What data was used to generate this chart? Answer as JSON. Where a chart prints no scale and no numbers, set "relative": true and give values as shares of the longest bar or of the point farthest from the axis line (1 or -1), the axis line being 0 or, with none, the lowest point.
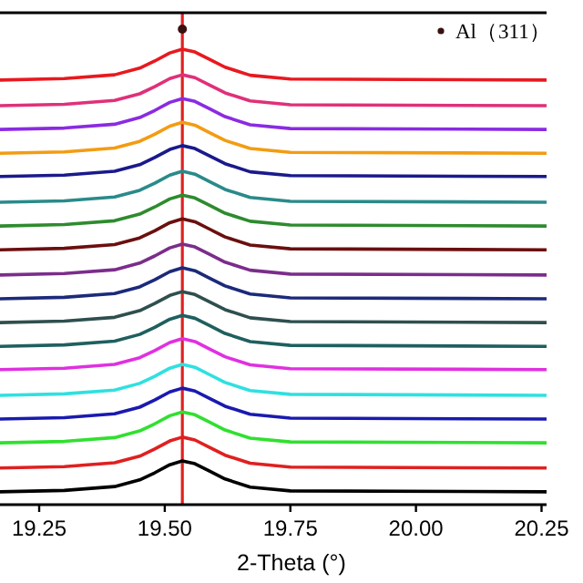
{
  "chart_data": {
    "type": "line",
    "xlabel": "2-Theta (°)",
    "relative": true,
    "xlim": [
      19.172,
      20.26
    ],
    "xticks": [
      {
        "value": 19.25,
        "label": "19.25"
      },
      {
        "value": 19.5,
        "label": "19.50"
      },
      {
        "value": 19.75,
        "label": "19.75"
      },
      {
        "value": 20.0,
        "label": "20.00"
      },
      {
        "value": 20.25,
        "label": "20.25"
      }
    ],
    "legend": "top right",
    "ref_lines": [
      {
        "axis": "x",
        "value": 19.535,
        "label": null,
        "color": "#e02020"
      }
    ],
    "x": [
      19.172,
      19.3,
      19.4,
      19.45,
      19.48,
      19.51,
      19.535,
      19.56,
      19.59,
      19.62,
      19.67,
      19.75,
      20.26
    ],
    "series": [
      {
        "color": "#e8191f",
        "values": [
          0.893,
          0.896,
          0.904,
          0.918,
          0.933,
          0.95,
          0.958,
          0.952,
          0.936,
          0.92,
          0.903,
          0.895,
          0.893
        ]
      },
      {
        "color": "#e0307a",
        "values": [
          0.839,
          0.842,
          0.85,
          0.864,
          0.879,
          0.896,
          0.904,
          0.898,
          0.882,
          0.866,
          0.849,
          0.841,
          0.839
        ]
      },
      {
        "color": "#8a2be2",
        "values": [
          0.789,
          0.792,
          0.8,
          0.814,
          0.829,
          0.846,
          0.854,
          0.848,
          0.832,
          0.816,
          0.799,
          0.791,
          0.789
        ]
      },
      {
        "color": "#f39c12",
        "values": [
          0.739,
          0.742,
          0.75,
          0.764,
          0.779,
          0.796,
          0.804,
          0.798,
          0.782,
          0.766,
          0.749,
          0.741,
          0.739
        ]
      },
      {
        "color": "#1a1a8c",
        "values": [
          0.69,
          0.693,
          0.701,
          0.715,
          0.73,
          0.747,
          0.755,
          0.749,
          0.733,
          0.717,
          0.7,
          0.692,
          0.69
        ]
      },
      {
        "color": "#2a8a8a",
        "values": [
          0.636,
          0.639,
          0.647,
          0.661,
          0.676,
          0.693,
          0.701,
          0.695,
          0.679,
          0.663,
          0.646,
          0.638,
          0.636
        ]
      },
      {
        "color": "#2e8b2e",
        "values": [
          0.586,
          0.589,
          0.597,
          0.611,
          0.626,
          0.643,
          0.651,
          0.645,
          0.629,
          0.613,
          0.596,
          0.588,
          0.586
        ]
      },
      {
        "color": "#6b0f0f",
        "values": [
          0.536,
          0.539,
          0.547,
          0.561,
          0.576,
          0.593,
          0.601,
          0.595,
          0.579,
          0.563,
          0.546,
          0.538,
          0.536
        ]
      },
      {
        "color": "#7b2d8b",
        "values": [
          0.483,
          0.486,
          0.494,
          0.508,
          0.523,
          0.54,
          0.548,
          0.542,
          0.526,
          0.51,
          0.493,
          0.485,
          0.483
        ]
      },
      {
        "color": "#1c2a7a",
        "values": [
          0.433,
          0.436,
          0.444,
          0.458,
          0.473,
          0.49,
          0.498,
          0.492,
          0.476,
          0.46,
          0.443,
          0.435,
          0.433
        ]
      },
      {
        "color": "#2f4f4f",
        "values": [
          0.383,
          0.386,
          0.394,
          0.408,
          0.423,
          0.44,
          0.448,
          0.442,
          0.426,
          0.41,
          0.393,
          0.385,
          0.383
        ]
      },
      {
        "color": "#1f5f5f",
        "values": [
          0.333,
          0.336,
          0.344,
          0.358,
          0.373,
          0.39,
          0.398,
          0.392,
          0.376,
          0.36,
          0.343,
          0.335,
          0.333
        ]
      },
      {
        "color": "#e030e0",
        "values": [
          0.284,
          0.287,
          0.295,
          0.309,
          0.324,
          0.341,
          0.349,
          0.343,
          0.327,
          0.311,
          0.294,
          0.286,
          0.284
        ]
      },
      {
        "color": "#30e0e0",
        "values": [
          0.23,
          0.233,
          0.241,
          0.255,
          0.27,
          0.287,
          0.295,
          0.289,
          0.273,
          0.257,
          0.24,
          0.232,
          0.23
        ]
      },
      {
        "color": "#1a1ab0",
        "values": [
          0.18,
          0.183,
          0.191,
          0.205,
          0.22,
          0.237,
          0.245,
          0.239,
          0.223,
          0.207,
          0.19,
          0.182,
          0.18
        ]
      },
      {
        "color": "#30e030",
        "values": [
          0.13,
          0.133,
          0.141,
          0.155,
          0.17,
          0.187,
          0.195,
          0.189,
          0.173,
          0.157,
          0.14,
          0.132,
          0.13
        ]
      },
      {
        "color": "#e02020",
        "values": [
          0.077,
          0.08,
          0.088,
          0.102,
          0.117,
          0.134,
          0.142,
          0.136,
          0.12,
          0.104,
          0.087,
          0.079,
          0.077
        ]
      },
      {
        "color": "#000000",
        "values": [
          0.027,
          0.03,
          0.038,
          0.052,
          0.067,
          0.084,
          0.092,
          0.086,
          0.07,
          0.054,
          0.037,
          0.029,
          0.027
        ]
      },
      {
        "type": "scatter",
        "name": "Al（311）",
        "color": "#3a1010",
        "marker": "circle",
        "x": [
          19.535
        ],
        "values": [
          1
        ]
      }
    ]
  }
}
